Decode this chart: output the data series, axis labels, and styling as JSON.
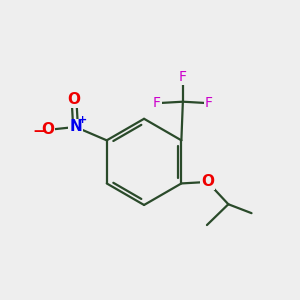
{
  "background_color": "#eeeeee",
  "bond_color": "#2a4a2a",
  "bond_width": 1.6,
  "atom_colors": {
    "N": "#0000ee",
    "O": "#ee0000",
    "F": "#cc00cc"
  },
  "font_size": 10
}
